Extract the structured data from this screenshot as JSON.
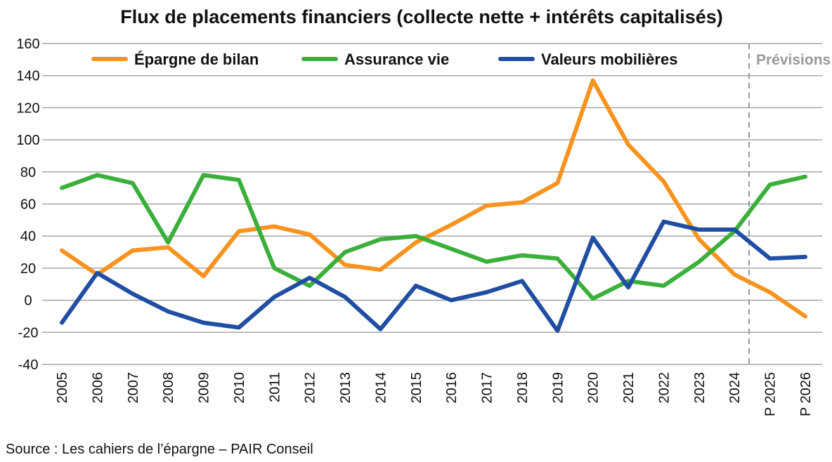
{
  "chart_data": {
    "type": "line",
    "title": "Flux de placements financiers (collecte nette + intérêts capitalisés)",
    "xlabel": "",
    "ylabel": "",
    "ylim": [
      -40,
      160
    ],
    "yticks": [
      -40,
      -20,
      0,
      20,
      40,
      60,
      80,
      100,
      120,
      140,
      160
    ],
    "grid": true,
    "legend_position": "top",
    "categories": [
      "2005",
      "2006",
      "2007",
      "2008",
      "2009",
      "2010",
      "2011",
      "2012",
      "2013",
      "2014",
      "2015",
      "2016",
      "2017",
      "2018",
      "2019",
      "2020",
      "2021",
      "2022",
      "2023",
      "2024",
      "P 2025",
      "P 2026"
    ],
    "forecast_label": "Prévisions",
    "series": [
      {
        "name": "Épargne de bilan",
        "color": "#F7931E",
        "values": [
          31,
          16,
          31,
          33,
          15,
          43,
          46,
          41,
          22,
          19,
          36,
          47,
          59,
          61,
          73,
          137,
          97,
          74,
          38,
          16,
          5,
          -10
        ]
      },
      {
        "name": "Assurance vie",
        "color": "#3AAF3A",
        "values": [
          70,
          78,
          73,
          36,
          78,
          75,
          20,
          9,
          30,
          38,
          40,
          32,
          24,
          28,
          26,
          1,
          12,
          9,
          24,
          43,
          72,
          77
        ]
      },
      {
        "name": "Valeurs mobilières",
        "color": "#1F4EA3",
        "values": [
          -14,
          17,
          4,
          -7,
          -14,
          -17,
          2,
          14,
          2,
          -18,
          9,
          0,
          5,
          12,
          -19,
          39,
          8,
          49,
          44,
          44,
          26,
          27
        ]
      }
    ],
    "source": "Source : Les cahiers de l’épargne – PAIR Conseil"
  }
}
